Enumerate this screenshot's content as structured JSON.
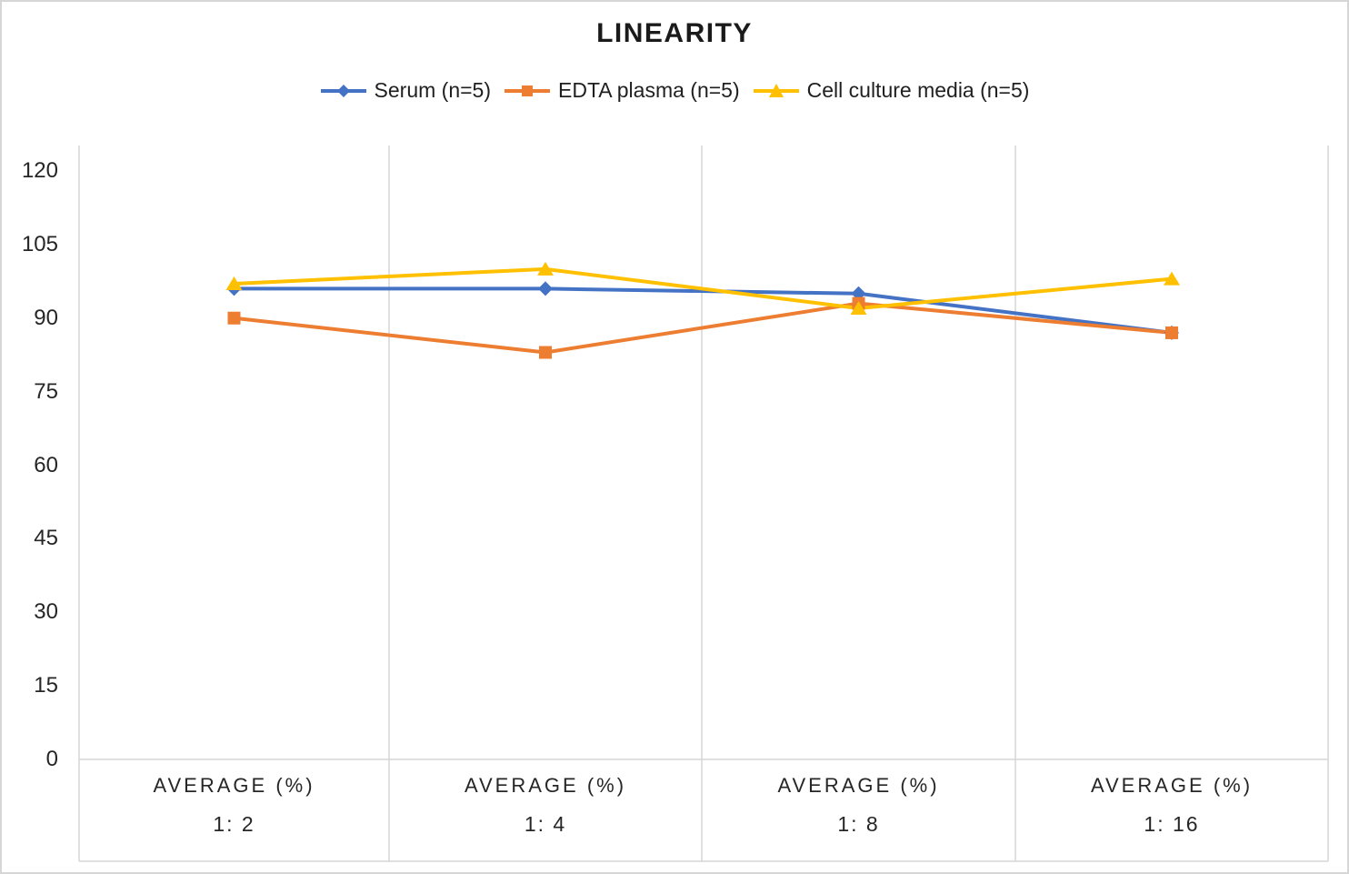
{
  "chart_data": {
    "type": "line",
    "title": "LINEARITY",
    "legend_position": "top",
    "category_header": "AVERAGE (%)",
    "categories": [
      "1: 2",
      "1: 4",
      "1: 8",
      "1: 16"
    ],
    "series": [
      {
        "name": "Serum (n=5)",
        "color": "#4472C4",
        "marker": "diamond",
        "values": [
          96,
          96,
          95,
          87
        ]
      },
      {
        "name": "EDTA plasma (n=5)",
        "color": "#ED7D31",
        "marker": "square",
        "values": [
          90,
          83,
          93,
          87
        ]
      },
      {
        "name": "Cell culture media (n=5)",
        "color": "#FFC000",
        "marker": "triangle",
        "values": [
          97,
          100,
          92,
          98
        ]
      }
    ],
    "xlabel": "",
    "ylabel": "",
    "ylim": [
      0,
      120
    ],
    "yticks": [
      0,
      15,
      30,
      45,
      60,
      75,
      90,
      105,
      120
    ],
    "grid": "vertical category separators only, no horizontal gridlines",
    "colors": {
      "gridline": "#D5D5D5",
      "axis_text": "#262626",
      "title_text": "#1A1A1A",
      "background": "#FFFFFF",
      "border": "#D6D6D6"
    }
  }
}
